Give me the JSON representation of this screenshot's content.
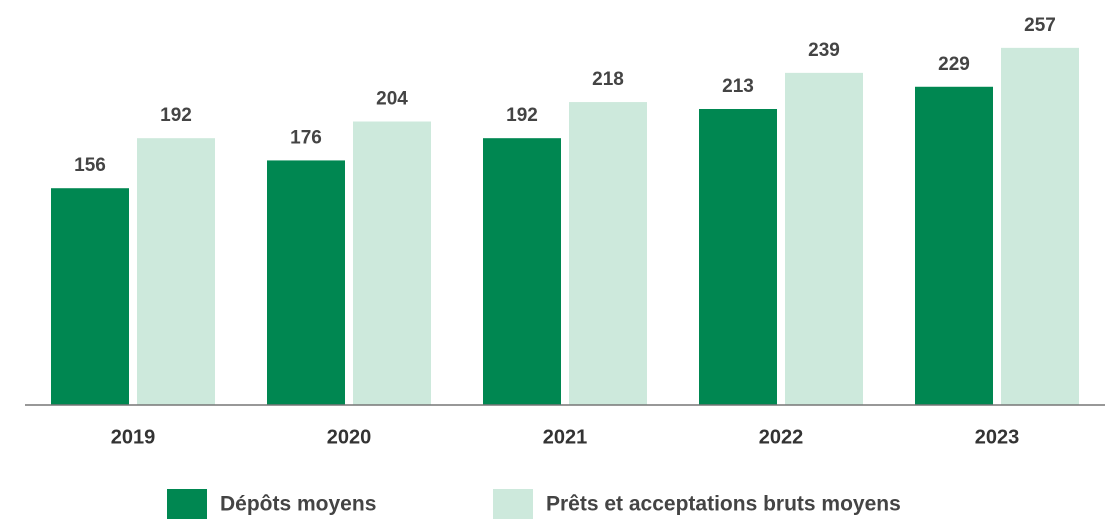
{
  "chart_data": {
    "type": "bar",
    "categories": [
      "2019",
      "2020",
      "2021",
      "2022",
      "2023"
    ],
    "series": [
      {
        "name": "Dépôts moyens",
        "color": "#008751",
        "values": [
          156,
          176,
          192,
          213,
          229
        ]
      },
      {
        "name": "Prêts et acceptations bruts moyens",
        "color": "#cde9dc",
        "values": [
          192,
          204,
          218,
          239,
          257
        ]
      }
    ],
    "ylim": [
      0,
      290
    ]
  }
}
